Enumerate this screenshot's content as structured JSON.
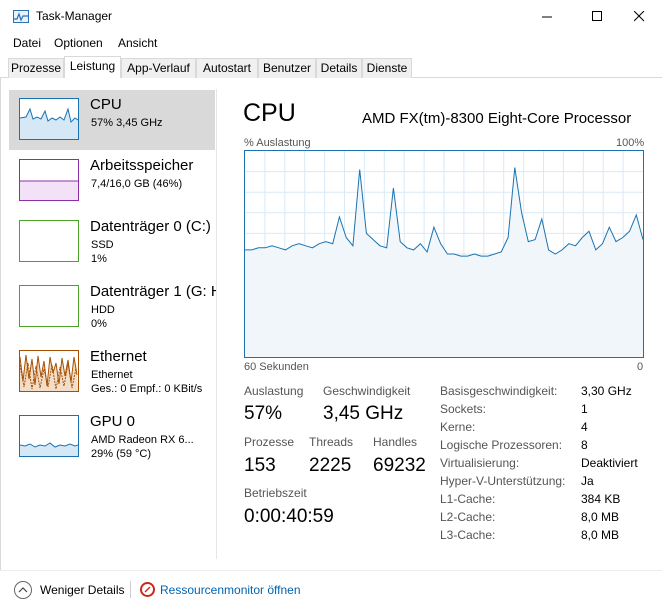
{
  "window": {
    "title": "Task-Manager"
  },
  "menu": [
    "Datei",
    "Optionen",
    "Ansicht"
  ],
  "tabs": [
    "Prozesse",
    "Leistung",
    "App-Verlauf",
    "Autostart",
    "Benutzer",
    "Details",
    "Dienste"
  ],
  "active_tab": "Leistung",
  "resources": [
    {
      "name": "CPU",
      "sub1": "57%  3,45 GHz",
      "sub2": "",
      "color": "#1a73b0",
      "icon": "cpu-graph-icon"
    },
    {
      "name": "Arbeitsspeicher",
      "sub1": "7,4/16,0 GB (46%)",
      "sub2": "",
      "color": "#8b2fa8",
      "icon": "memory-graph-icon"
    },
    {
      "name": "Datenträger 0 (C:)",
      "sub1": "SSD",
      "sub2": "1%",
      "color": "#4da325",
      "icon": "disk-graph-icon"
    },
    {
      "name": "Datenträger 1 (G: H",
      "sub1": "HDD",
      "sub2": "0%",
      "color": "#4da325",
      "icon": "disk-graph-icon"
    },
    {
      "name": "Ethernet",
      "sub1": "Ethernet",
      "sub2": "Ges.: 0  Empf.: 0 KBit/s",
      "color": "#a74f01",
      "icon": "network-graph-icon"
    },
    {
      "name": "GPU 0",
      "sub1": "AMD Radeon RX 6...",
      "sub2": "29% (59 °C)",
      "color": "#1a73b0",
      "icon": "gpu-graph-icon"
    }
  ],
  "detail": {
    "title": "CPU",
    "model": "AMD FX(tm)-8300 Eight-Core Processor",
    "graph_label_left": "% Auslastung",
    "graph_label_right": "100%",
    "axis_left": "60 Sekunden",
    "axis_right": "0",
    "stats": {
      "auslastung_label": "Auslastung",
      "auslastung_value": "57%",
      "geschwindigkeit_label": "Geschwindigkeit",
      "geschwindigkeit_value": "3,45 GHz",
      "prozesse_label": "Prozesse",
      "prozesse_value": "153",
      "threads_label": "Threads",
      "threads_value": "2225",
      "handles_label": "Handles",
      "handles_value": "69232",
      "betriebszeit_label": "Betriebszeit",
      "betriebszeit_value": "0:00:40:59"
    },
    "info": [
      {
        "label": "Basisgeschwindigkeit:",
        "value": "3,30 GHz"
      },
      {
        "label": "Sockets:",
        "value": "1"
      },
      {
        "label": "Kerne:",
        "value": "4"
      },
      {
        "label": "Logische Prozessoren:",
        "value": "8"
      },
      {
        "label": "Virtualisierung:",
        "value": "Deaktiviert"
      },
      {
        "label": "Hyper-V-Unterstützung:",
        "value": "Ja"
      },
      {
        "label": "L1-Cache:",
        "value": "384 KB"
      },
      {
        "label": "L2-Cache:",
        "value": "8,0 MB"
      },
      {
        "label": "L3-Cache:",
        "value": "8,0 MB"
      }
    ]
  },
  "cpu_history_percent": [
    52,
    52,
    53,
    53,
    54,
    53,
    52,
    54,
    55,
    54,
    53,
    55,
    56,
    55,
    68,
    58,
    54,
    91,
    60,
    57,
    54,
    53,
    82,
    56,
    53,
    52,
    55,
    51,
    63,
    55,
    50,
    50,
    49,
    49,
    50,
    49,
    49,
    50,
    51,
    58,
    92,
    70,
    56,
    57,
    67,
    52,
    50,
    52,
    55,
    54,
    58,
    61,
    52,
    55,
    63,
    56,
    58,
    61,
    69,
    57
  ],
  "bottom": {
    "fewer_details": "Weniger Details",
    "resource_monitor": "Ressourcenmonitor öffnen"
  }
}
